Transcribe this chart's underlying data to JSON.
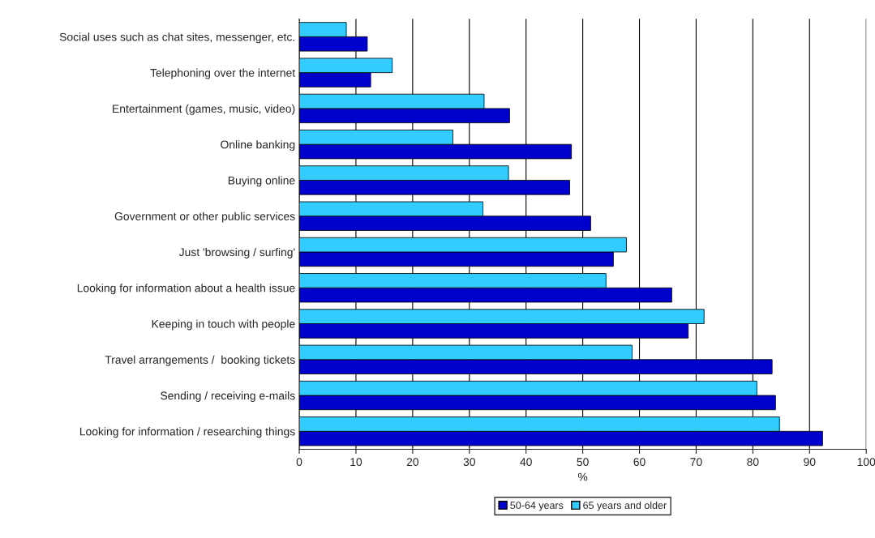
{
  "chart_data": {
    "type": "bar",
    "orientation": "horizontal",
    "categories": [
      "Social uses such as chat sites, messenger, etc.",
      "Telephoning over the internet",
      "Entertainment (games, music, video)",
      "Online banking",
      "Buying online",
      "Government or other public services",
      "Just 'browsing / surfing'",
      "Looking for information about a health issue",
      "Keeping in touch with people",
      "Travel arrangements /  booking tickets",
      "Sending / receiving e-mails",
      "Looking for information / researching things"
    ],
    "series": [
      {
        "name": "50-64 years",
        "color": "#0000cc",
        "values": [
          12.0,
          12.6,
          37.1,
          48.0,
          47.7,
          51.4,
          55.4,
          65.7,
          68.6,
          83.4,
          84.0,
          92.3
        ]
      },
      {
        "name": "65 years and older",
        "color": "#33ccff",
        "values": [
          8.3,
          16.4,
          32.6,
          27.1,
          36.9,
          32.4,
          57.7,
          54.1,
          71.4,
          58.7,
          80.7,
          84.7
        ]
      }
    ],
    "xlabel": "%",
    "xlim": [
      0,
      100
    ],
    "xticks": [
      0,
      10,
      20,
      30,
      40,
      50,
      60,
      70,
      80,
      90,
      100
    ],
    "grid": "x",
    "legend": "bottom"
  }
}
